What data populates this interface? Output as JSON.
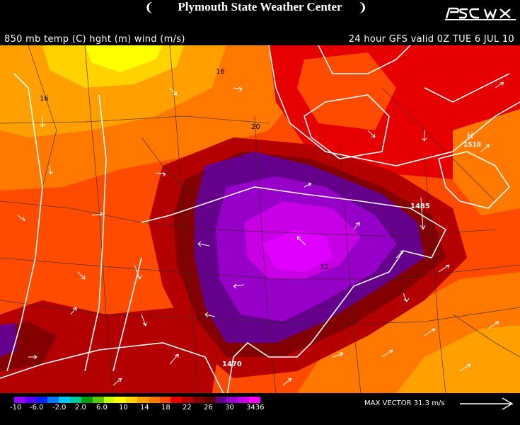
{
  "header": {
    "title": "Plymouth State Weather Center",
    "logo_text": "PSC WX"
  },
  "subtitle_left": "850 mb temp (C) hght (m) wind (m/s)",
  "subtitle_right": "24 hour GFS valid 0Z TUE 6 JUL 10",
  "colorbar": {
    "labels": [
      "-10",
      "-6.0",
      "-2.0",
      "2.0",
      "6.0",
      "10",
      "14",
      "18",
      "22",
      "26",
      "30",
      "3436"
    ],
    "colors": [
      "#9a00ff",
      "#5a00ff",
      "#0020ff",
      "#0078ff",
      "#00c8ff",
      "#00c89a",
      "#00a000",
      "#5ac800",
      "#c8ff00",
      "#ffff00",
      "#ffd200",
      "#ffa000",
      "#ff7800",
      "#ff4b00",
      "#e60000",
      "#b40000",
      "#820000",
      "#5a0000",
      "#64008c",
      "#9600c8",
      "#c800e6",
      "#ff00ff"
    ]
  },
  "max_vector": "MAX VECTOR  31.3 m/s",
  "map_labels": {
    "t16a": "16",
    "t16b": "16",
    "t20": "20",
    "t32": "32",
    "h1470": "1470",
    "h1485": "1485",
    "h_marker": "H",
    "h_value": "1518"
  }
}
